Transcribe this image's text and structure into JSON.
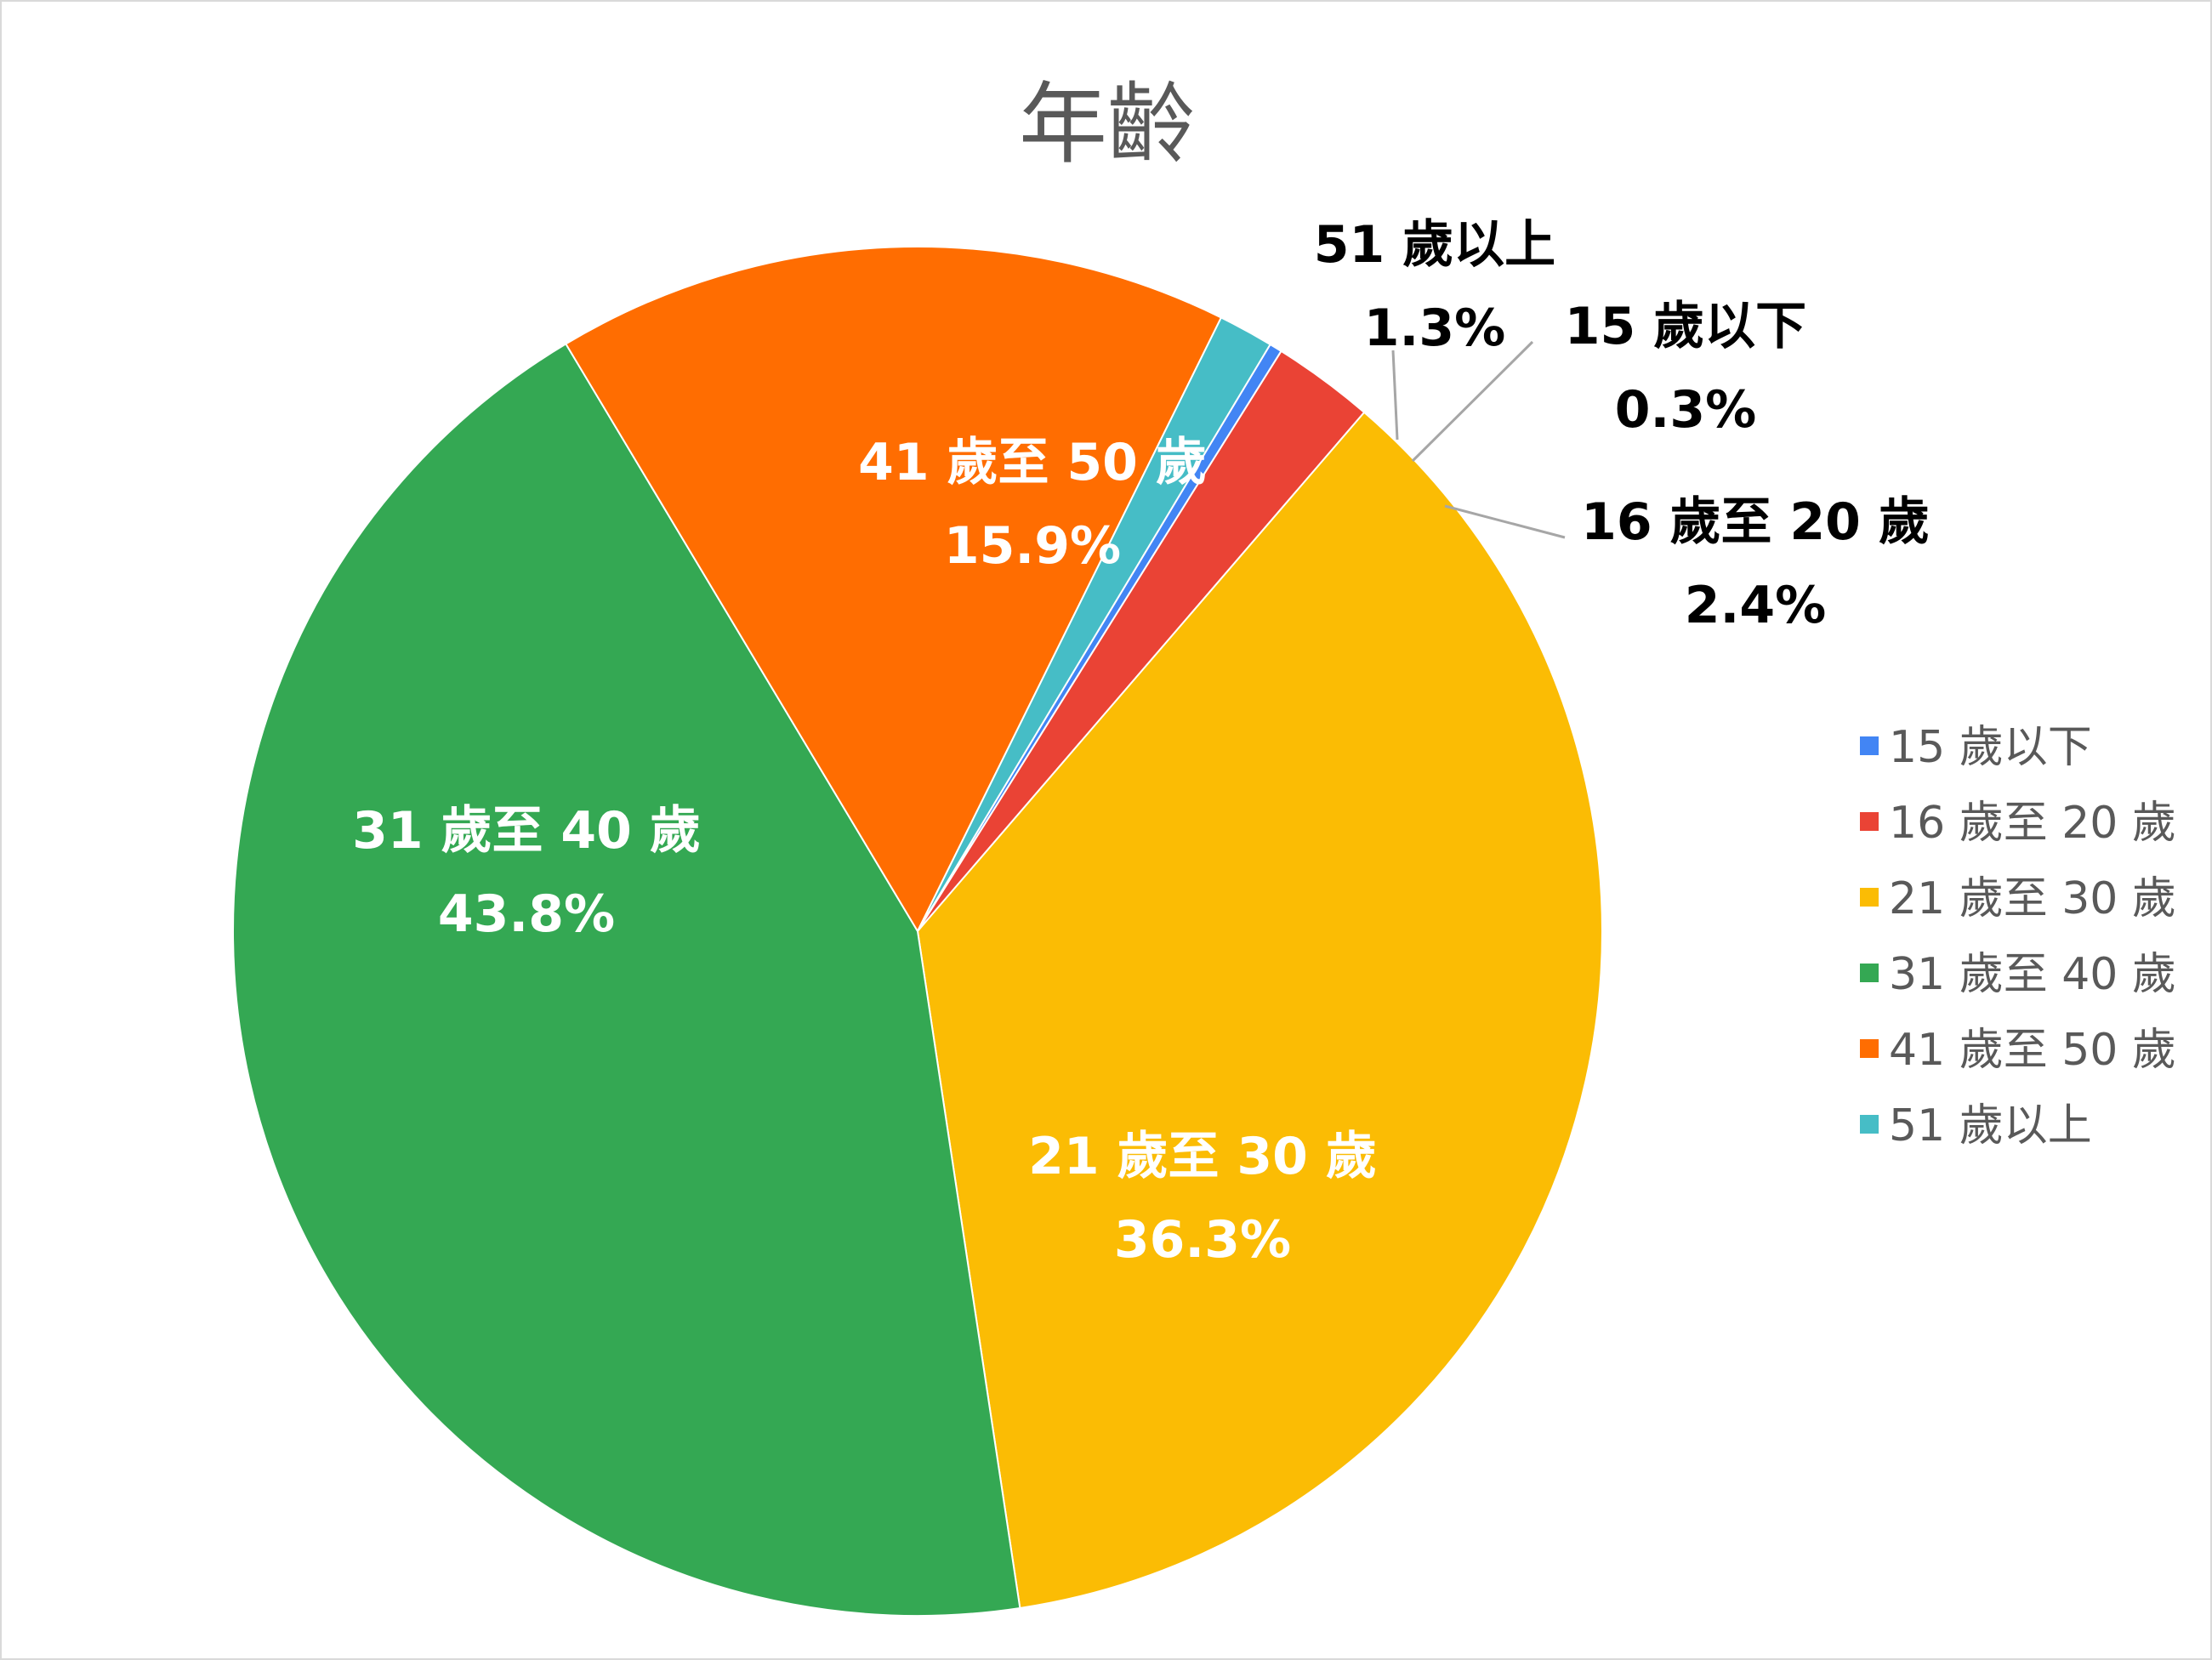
{
  "chart_data": {
    "type": "pie",
    "title": "年齡",
    "categories": [
      "15 歲以下",
      "16 歲至 20 歲",
      "21 歲至 30 歲",
      "31 歲至 40 歲",
      "41 歲至 50 歲",
      "51 歲以上"
    ],
    "values": [
      0.3,
      2.4,
      36.3,
      43.8,
      15.9,
      1.3
    ],
    "value_labels": [
      "0.3%",
      "2.4%",
      "36.3%",
      "43.8%",
      "15.9%",
      "1.3%"
    ],
    "colors": [
      "#4285f4",
      "#ea4335",
      "#fbbc04",
      "#34a853",
      "#ff6d01",
      "#46bdc6"
    ],
    "start_angle_deg": 31,
    "legend_position": "right"
  }
}
